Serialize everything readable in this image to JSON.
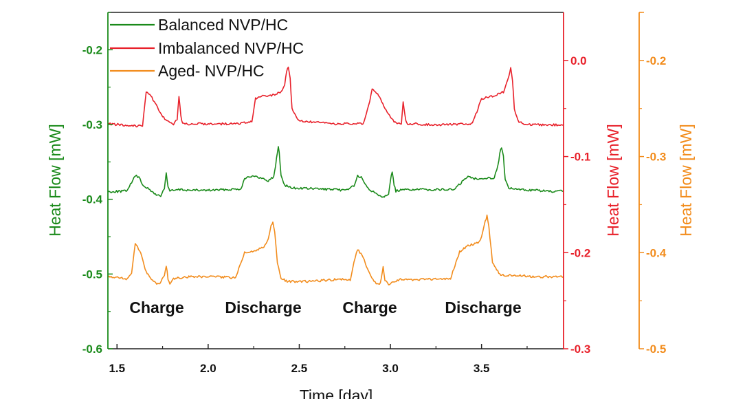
{
  "chart_data": {
    "type": "line",
    "xlabel": "Time [day]",
    "xlim": [
      1.45,
      3.95
    ],
    "x_ticks": [
      1.5,
      2.0,
      2.5,
      3.0,
      3.5
    ],
    "axes": [
      {
        "key": "green",
        "label": "Heat Flow [mW]",
        "color": "#1a8a1a",
        "ylim": [
          -0.6,
          -0.15
        ],
        "ticks": [
          -0.2,
          -0.3,
          -0.4,
          -0.5,
          -0.6
        ]
      },
      {
        "key": "red",
        "label": "Heat Flow [mW]",
        "color": "#e8202a",
        "ylim": [
          -0.3,
          0.05
        ],
        "ticks": [
          0.0,
          -0.1,
          -0.2,
          -0.3
        ]
      },
      {
        "key": "orange",
        "label": "Heat Flow [mW]",
        "color": "#f28c1c",
        "ylim": [
          -0.5,
          -0.15
        ],
        "ticks": [
          -0.2,
          -0.3,
          -0.4,
          -0.5
        ]
      }
    ],
    "legend_position": "top-left",
    "series": [
      {
        "name": "Balanced NVP/HC",
        "color": "#1a8a1a",
        "axis": "green",
        "x": [
          1.45,
          1.55,
          1.58,
          1.6,
          1.62,
          1.64,
          1.68,
          1.71,
          1.74,
          1.76,
          1.77,
          1.78,
          1.79,
          1.81,
          1.85,
          1.9,
          2.0,
          2.1,
          2.18,
          2.2,
          2.23,
          2.28,
          2.33,
          2.36,
          2.37,
          2.38,
          2.385,
          2.39,
          2.4,
          2.42,
          2.46,
          2.6,
          2.75,
          2.8,
          2.82,
          2.84,
          2.86,
          2.89,
          2.93,
          2.96,
          2.99,
          3.0,
          3.01,
          3.02,
          3.03,
          3.05,
          3.1,
          3.2,
          3.35,
          3.4,
          3.42,
          3.46,
          3.52,
          3.57,
          3.59,
          3.6,
          3.61,
          3.62,
          3.63,
          3.65,
          3.7,
          3.8,
          3.9,
          3.95
        ],
        "y": [
          -0.39,
          -0.389,
          -0.378,
          -0.368,
          -0.371,
          -0.38,
          -0.388,
          -0.393,
          -0.396,
          -0.385,
          -0.365,
          -0.383,
          -0.389,
          -0.388,
          -0.387,
          -0.388,
          -0.388,
          -0.387,
          -0.386,
          -0.372,
          -0.369,
          -0.371,
          -0.375,
          -0.37,
          -0.355,
          -0.337,
          -0.33,
          -0.338,
          -0.368,
          -0.381,
          -0.385,
          -0.386,
          -0.388,
          -0.382,
          -0.369,
          -0.371,
          -0.38,
          -0.388,
          -0.393,
          -0.397,
          -0.392,
          -0.375,
          -0.363,
          -0.381,
          -0.389,
          -0.388,
          -0.387,
          -0.387,
          -0.387,
          -0.375,
          -0.37,
          -0.372,
          -0.372,
          -0.371,
          -0.355,
          -0.338,
          -0.33,
          -0.343,
          -0.375,
          -0.385,
          -0.387,
          -0.388,
          -0.39,
          -0.389
        ]
      },
      {
        "name": "Imbalanced NVP/HC",
        "color": "#e8202a",
        "axis": "red",
        "x": [
          1.45,
          1.6,
          1.64,
          1.66,
          1.68,
          1.71,
          1.75,
          1.78,
          1.81,
          1.83,
          1.84,
          1.85,
          1.86,
          1.88,
          2.0,
          2.15,
          2.24,
          2.26,
          2.3,
          2.36,
          2.4,
          2.42,
          2.43,
          2.44,
          2.45,
          2.46,
          2.49,
          2.55,
          2.7,
          2.85,
          2.88,
          2.9,
          2.93,
          2.97,
          3.02,
          3.06,
          3.07,
          3.08,
          3.09,
          3.12,
          3.25,
          3.45,
          3.48,
          3.5,
          3.56,
          3.62,
          3.65,
          3.66,
          3.67,
          3.68,
          3.7,
          3.74,
          3.8,
          3.95
        ],
        "y": [
          -0.066,
          -0.068,
          -0.068,
          -0.032,
          -0.035,
          -0.045,
          -0.058,
          -0.064,
          -0.066,
          -0.062,
          -0.038,
          -0.058,
          -0.066,
          -0.066,
          -0.066,
          -0.066,
          -0.064,
          -0.04,
          -0.037,
          -0.036,
          -0.033,
          -0.025,
          -0.012,
          -0.006,
          -0.018,
          -0.05,
          -0.062,
          -0.064,
          -0.066,
          -0.066,
          -0.048,
          -0.03,
          -0.035,
          -0.05,
          -0.064,
          -0.066,
          -0.043,
          -0.058,
          -0.066,
          -0.066,
          -0.067,
          -0.066,
          -0.05,
          -0.04,
          -0.037,
          -0.033,
          -0.016,
          -0.007,
          -0.022,
          -0.05,
          -0.063,
          -0.067,
          -0.067,
          -0.067
        ]
      },
      {
        "name": "Aged- NVP/HC",
        "color": "#f28c1c",
        "axis": "orange",
        "x": [
          1.45,
          1.55,
          1.58,
          1.6,
          1.63,
          1.66,
          1.7,
          1.73,
          1.76,
          1.77,
          1.78,
          1.79,
          1.81,
          1.9,
          2.0,
          2.15,
          2.18,
          2.2,
          2.25,
          2.3,
          2.33,
          2.345,
          2.355,
          2.365,
          2.38,
          2.4,
          2.44,
          2.55,
          2.7,
          2.78,
          2.8,
          2.82,
          2.85,
          2.88,
          2.91,
          2.94,
          2.95,
          2.96,
          2.97,
          2.99,
          3.05,
          3.2,
          3.33,
          3.36,
          3.38,
          3.42,
          3.48,
          3.5,
          3.52,
          3.53,
          3.54,
          3.56,
          3.6,
          3.7,
          3.8,
          3.95
        ],
        "y": [
          -0.425,
          -0.427,
          -0.422,
          -0.39,
          -0.4,
          -0.42,
          -0.43,
          -0.433,
          -0.424,
          -0.413,
          -0.427,
          -0.433,
          -0.427,
          -0.425,
          -0.425,
          -0.426,
          -0.41,
          -0.4,
          -0.398,
          -0.395,
          -0.386,
          -0.372,
          -0.368,
          -0.378,
          -0.41,
          -0.427,
          -0.43,
          -0.43,
          -0.428,
          -0.428,
          -0.41,
          -0.396,
          -0.405,
          -0.42,
          -0.43,
          -0.434,
          -0.427,
          -0.415,
          -0.428,
          -0.433,
          -0.428,
          -0.428,
          -0.427,
          -0.41,
          -0.399,
          -0.393,
          -0.39,
          -0.384,
          -0.367,
          -0.362,
          -0.372,
          -0.41,
          -0.423,
          -0.424,
          -0.425,
          -0.425
        ]
      }
    ],
    "annotations": [
      {
        "text": "Charge",
        "x": 1.72
      },
      {
        "text": "Discharge",
        "x": 2.3
      },
      {
        "text": "Charge",
        "x": 2.98
      },
      {
        "text": "Discharge",
        "x": 3.52
      }
    ]
  }
}
